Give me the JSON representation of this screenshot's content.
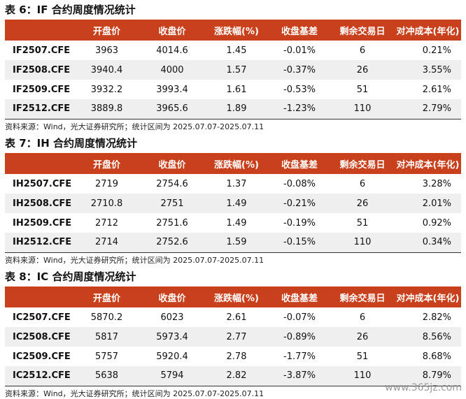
{
  "headers": [
    "",
    "开盘价",
    "收盘价",
    "涨跌幅(%)",
    "收盘基差",
    "剩余交易日",
    "对冲成本(年化)"
  ],
  "tables": [
    {
      "title": "表 6：IF 合约周度情况统计",
      "rows": [
        [
          "IF2507.CFE",
          "3963",
          "4014.6",
          "1.45",
          "-0.01%",
          "6",
          "0.21%"
        ],
        [
          "IF2508.CFE",
          "3940.4",
          "4000",
          "1.57",
          "-0.37%",
          "26",
          "3.55%"
        ],
        [
          "IF2509.CFE",
          "3932.2",
          "3993.4",
          "1.61",
          "-0.53%",
          "51",
          "2.61%"
        ],
        [
          "IF2512.CFE",
          "3889.8",
          "3965.6",
          "1.89",
          "-1.23%",
          "110",
          "2.79%"
        ]
      ],
      "source": "资料来源：Wind，光大证券研究所；统计区间为 2025.07.07-2025.07.11"
    },
    {
      "title": "表 7：IH 合约周度情况统计",
      "rows": [
        [
          "IH2507.CFE",
          "2719",
          "2754.6",
          "1.37",
          "-0.08%",
          "6",
          "3.28%"
        ],
        [
          "IH2508.CFE",
          "2710.8",
          "2751",
          "1.49",
          "-0.21%",
          "26",
          "2.01%"
        ],
        [
          "IH2509.CFE",
          "2712",
          "2751.6",
          "1.49",
          "-0.19%",
          "51",
          "0.92%"
        ],
        [
          "IH2512.CFE",
          "2714",
          "2752.6",
          "1.59",
          "-0.15%",
          "110",
          "0.34%"
        ]
      ],
      "source": "资料来源：Wind，光大证券研究所；统计区间为 2025.07.07-2025.07.11"
    },
    {
      "title": "表 8：IC 合约周度情况统计",
      "rows": [
        [
          "IC2507.CFE",
          "5870.2",
          "6023",
          "2.61",
          "-0.07%",
          "6",
          "2.82%"
        ],
        [
          "IC2508.CFE",
          "5817",
          "5973.4",
          "2.77",
          "-0.89%",
          "26",
          "8.56%"
        ],
        [
          "IC2509.CFE",
          "5757",
          "5920.4",
          "2.78",
          "-1.77%",
          "51",
          "8.68%"
        ],
        [
          "IC2512.CFE",
          "5638",
          "5794",
          "2.82",
          "-3.87%",
          "110",
          "8.79%"
        ]
      ],
      "source": "资料来源：Wind，光大证券研究所；统计区间为 2025.07.07-2025.07.11"
    }
  ],
  "watermark": "www.365jz.com"
}
